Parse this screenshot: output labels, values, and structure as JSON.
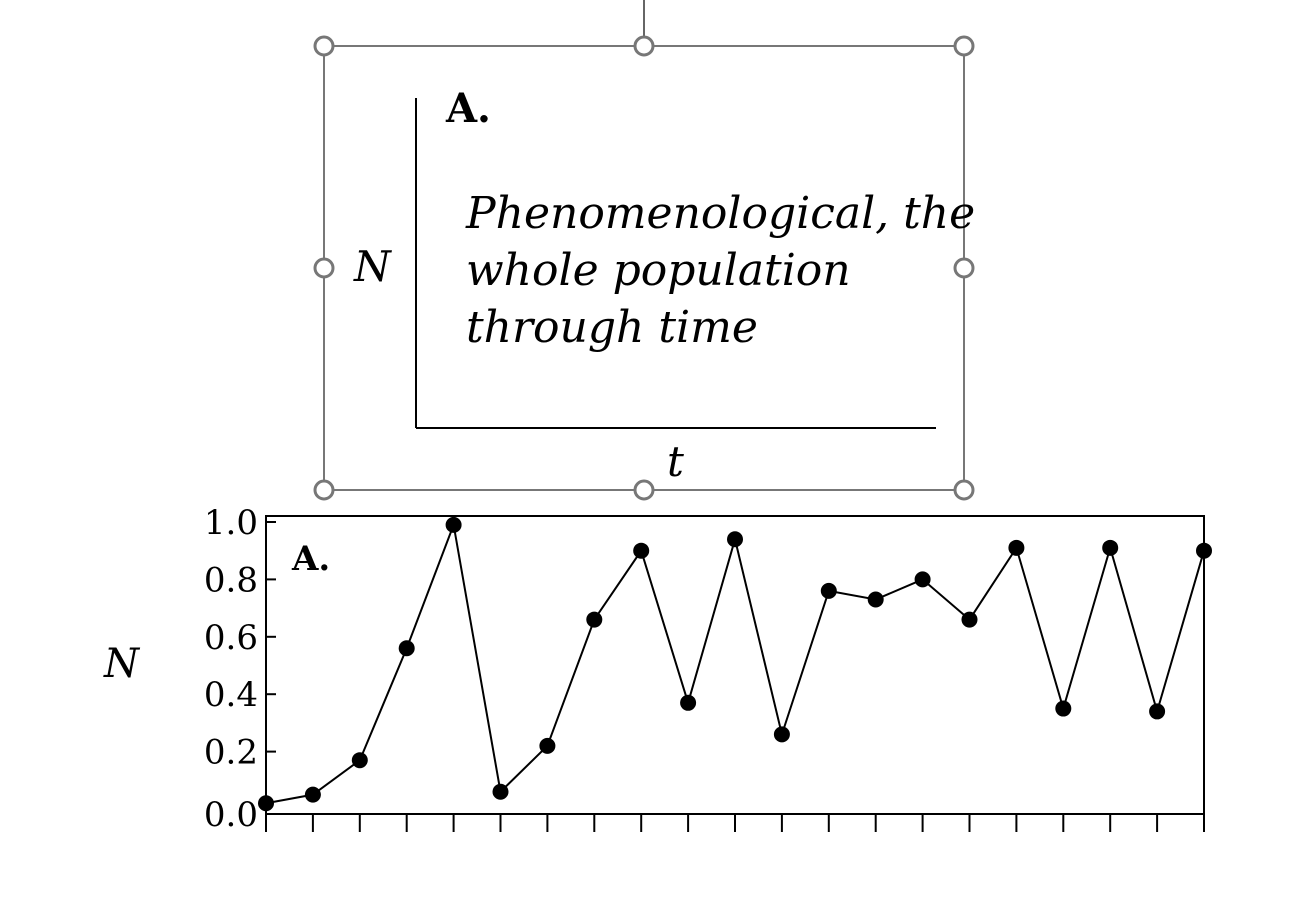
{
  "schematic": {
    "panel_label": "A.",
    "text_lines": [
      "Phenomenological, the",
      "whole population",
      "through time"
    ],
    "y_label": "N",
    "x_label": "t"
  },
  "chart_data": {
    "type": "line",
    "title": "",
    "panel_label": "A.",
    "xlabel": "",
    "ylabel": "N",
    "x": [
      0,
      1,
      2,
      3,
      4,
      5,
      6,
      7,
      8,
      9,
      10,
      11,
      12,
      13,
      14,
      15,
      16,
      17,
      18,
      19,
      20
    ],
    "series": [
      {
        "values": [
          0.02,
          0.05,
          0.17,
          0.56,
          0.99,
          0.06,
          0.22,
          0.66,
          0.9,
          0.37,
          0.94,
          0.26,
          0.76,
          0.73,
          0.8,
          0.66,
          0.91,
          0.35,
          0.91,
          0.34,
          0.9
        ]
      }
    ],
    "ylim": [
      0.0,
      1.0
    ],
    "yticks": [
      "0.0",
      "0.2",
      "0.4",
      "0.6",
      "0.8",
      "1.0"
    ],
    "marker": "filled-circle",
    "color": "#000000",
    "grid": false,
    "legend": "none"
  }
}
